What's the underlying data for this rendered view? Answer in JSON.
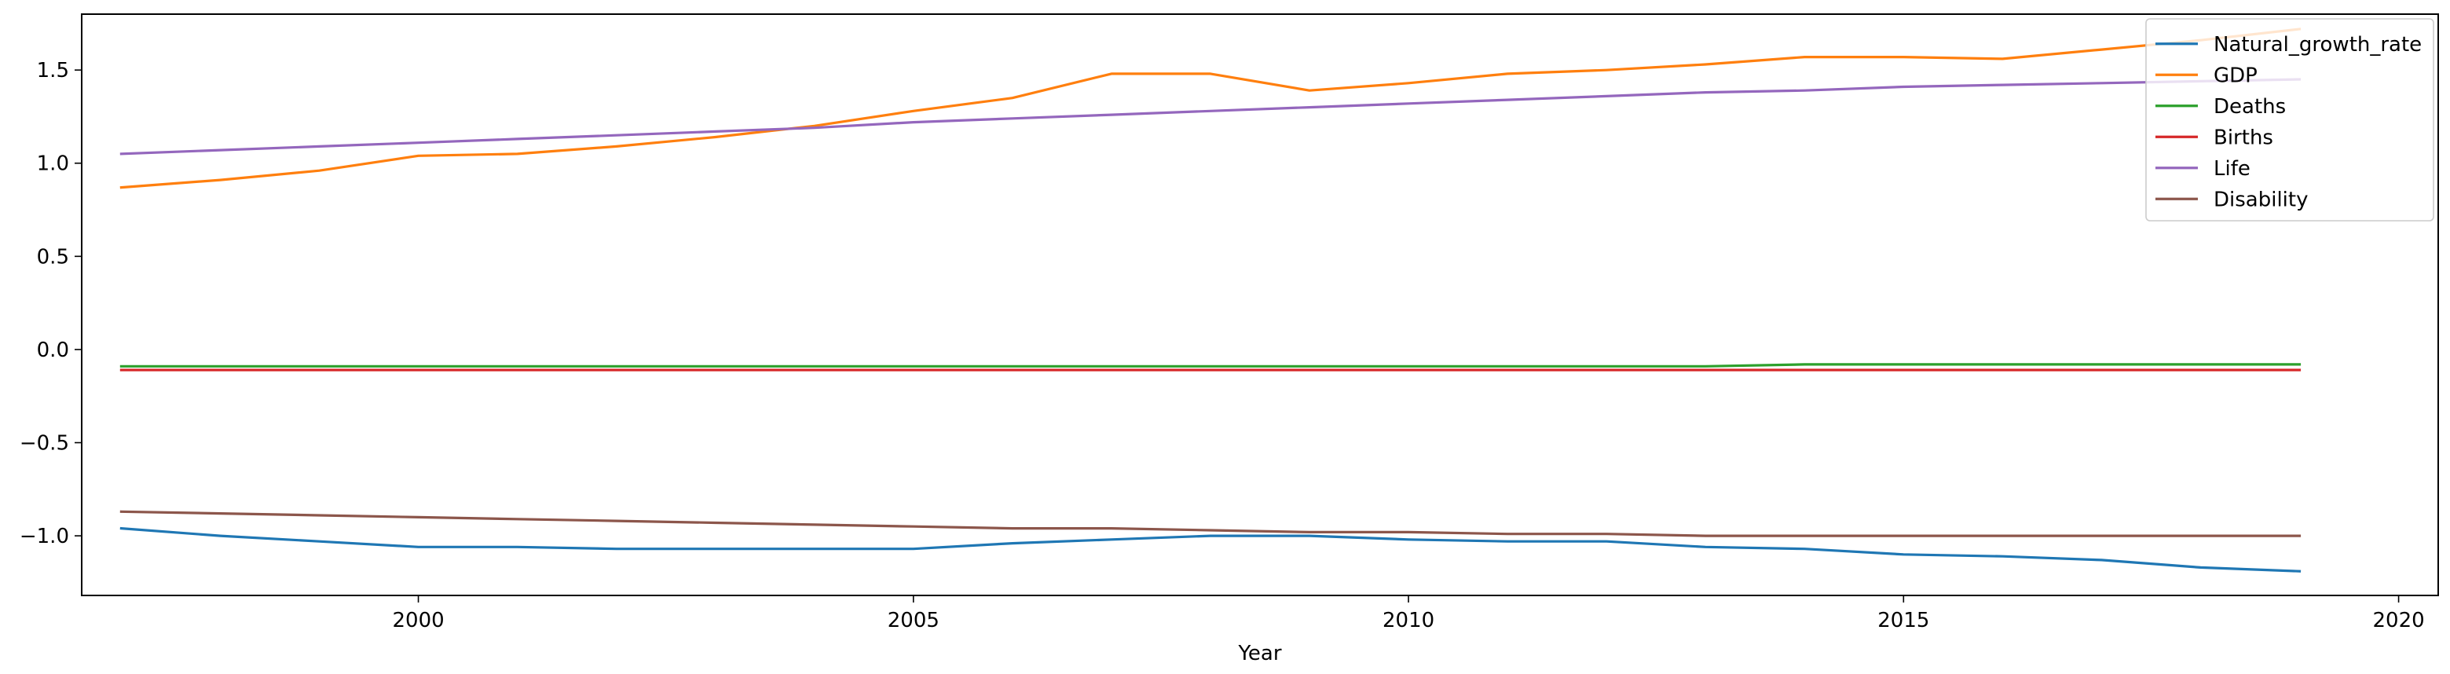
{
  "chart_data": {
    "type": "line",
    "xlabel": "Year",
    "ylabel": "",
    "xlim": [
      1996.6,
      2020.4
    ],
    "ylim": [
      -1.32,
      1.8
    ],
    "xticks": [
      2000,
      2005,
      2010,
      2015,
      2020
    ],
    "yticks": [
      -1.0,
      -0.5,
      0.0,
      0.5,
      1.0,
      1.5
    ],
    "xtick_labels": [
      "2000",
      "2005",
      "2010",
      "2015",
      "2020"
    ],
    "ytick_labels": [
      "−1.0",
      "−0.5",
      "0.0",
      "0.5",
      "1.0",
      "1.5"
    ],
    "grid": false,
    "legend_position": "top-right",
    "x": [
      1997,
      1998,
      1999,
      2000,
      2001,
      2002,
      2003,
      2004,
      2005,
      2006,
      2007,
      2008,
      2009,
      2010,
      2011,
      2012,
      2013,
      2014,
      2015,
      2016,
      2017,
      2018,
      2019
    ],
    "series": [
      {
        "name": "Natural_growth_rate",
        "color": "#1f77b4",
        "values": [
          -0.96,
          -1.0,
          -1.03,
          -1.06,
          -1.06,
          -1.07,
          -1.07,
          -1.07,
          -1.07,
          -1.04,
          -1.02,
          -1.0,
          -1.0,
          -1.02,
          -1.03,
          -1.03,
          -1.06,
          -1.07,
          -1.1,
          -1.11,
          -1.13,
          -1.17,
          -1.19
        ]
      },
      {
        "name": "GDP",
        "color": "#ff7f0e",
        "values": [
          0.87,
          0.91,
          0.96,
          1.04,
          1.05,
          1.09,
          1.14,
          1.2,
          1.28,
          1.35,
          1.48,
          1.48,
          1.39,
          1.43,
          1.48,
          1.5,
          1.53,
          1.57,
          1.57,
          1.56,
          1.61,
          1.66,
          1.72
        ]
      },
      {
        "name": "Deaths",
        "color": "#2ca02c",
        "values": [
          -0.09,
          -0.09,
          -0.09,
          -0.09,
          -0.09,
          -0.09,
          -0.09,
          -0.09,
          -0.09,
          -0.09,
          -0.09,
          -0.09,
          -0.09,
          -0.09,
          -0.09,
          -0.09,
          -0.09,
          -0.08,
          -0.08,
          -0.08,
          -0.08,
          -0.08,
          -0.08
        ]
      },
      {
        "name": "Births",
        "color": "#d62728",
        "values": [
          -0.11,
          -0.11,
          -0.11,
          -0.11,
          -0.11,
          -0.11,
          -0.11,
          -0.11,
          -0.11,
          -0.11,
          -0.11,
          -0.11,
          -0.11,
          -0.11,
          -0.11,
          -0.11,
          -0.11,
          -0.11,
          -0.11,
          -0.11,
          -0.11,
          -0.11,
          -0.11
        ]
      },
      {
        "name": "Life",
        "color": "#9467bd",
        "values": [
          1.05,
          1.07,
          1.09,
          1.11,
          1.13,
          1.15,
          1.17,
          1.19,
          1.22,
          1.24,
          1.26,
          1.28,
          1.3,
          1.32,
          1.34,
          1.36,
          1.38,
          1.39,
          1.41,
          1.42,
          1.43,
          1.44,
          1.45
        ]
      },
      {
        "name": "Disability",
        "color": "#8c564b",
        "values": [
          -0.87,
          -0.88,
          -0.89,
          -0.9,
          -0.91,
          -0.92,
          -0.93,
          -0.94,
          -0.95,
          -0.96,
          -0.96,
          -0.97,
          -0.98,
          -0.98,
          -0.99,
          -0.99,
          -1.0,
          -1.0,
          -1.0,
          -1.0,
          -1.0,
          -1.0,
          -1.0
        ]
      }
    ]
  }
}
